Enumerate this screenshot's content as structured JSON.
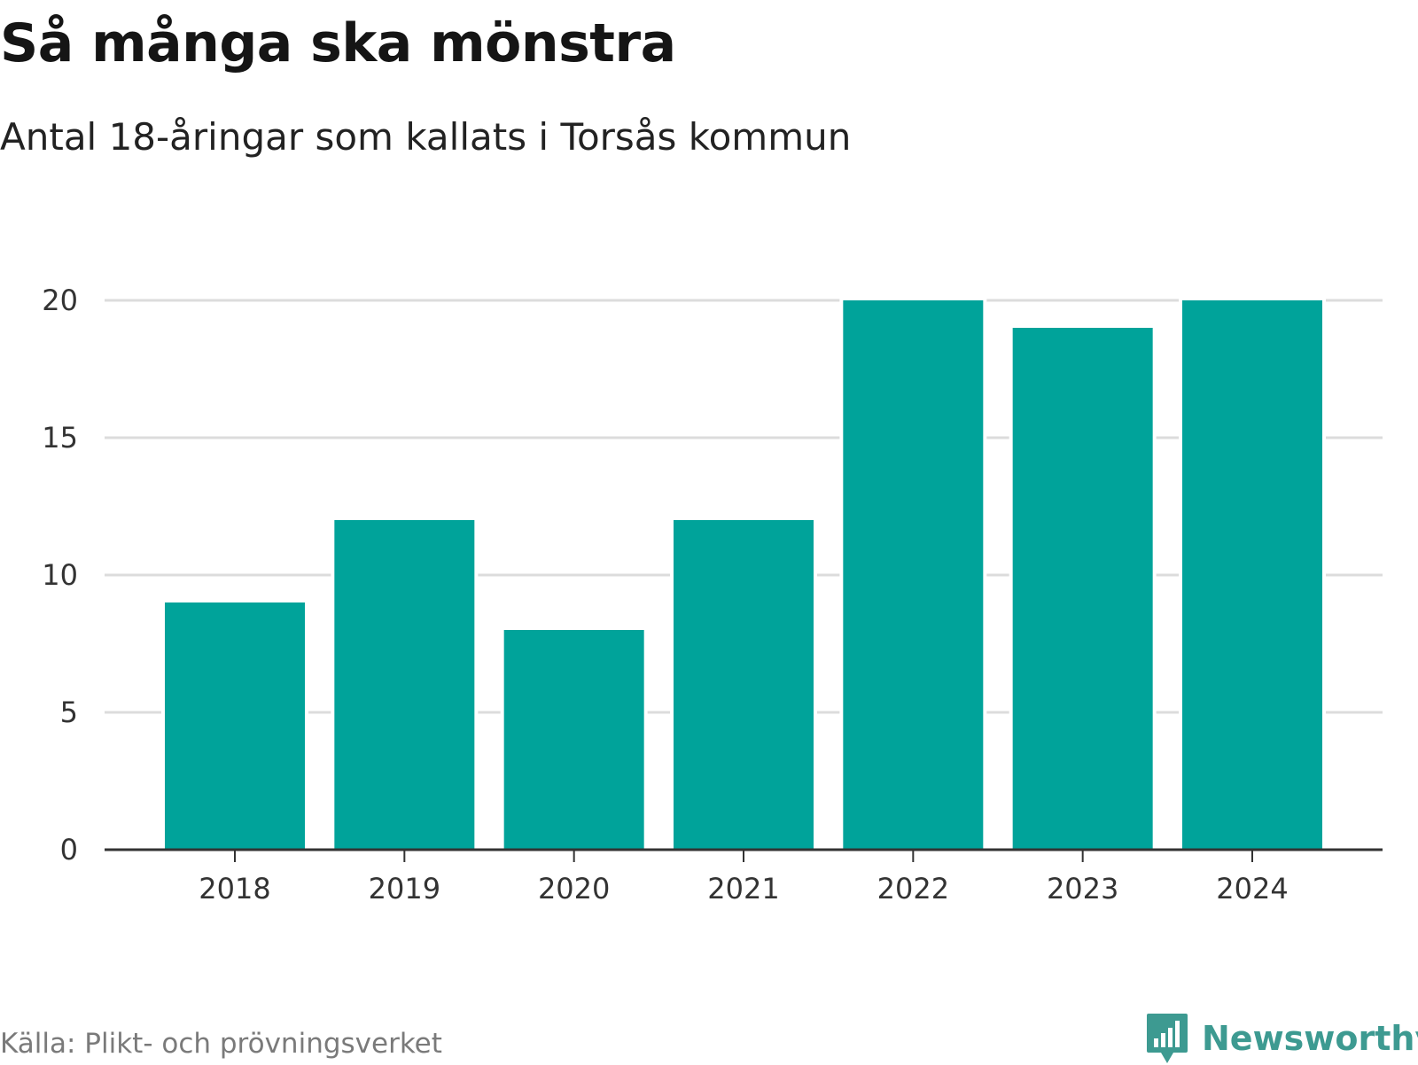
{
  "title": "Så många ska mönstra",
  "subtitle": "Antal 18-åringar som kallats i Torsås kommun",
  "source": "Källa: Plikt- och prövningsverket",
  "brand": {
    "name": "Newsworthy",
    "icon": "newsworthy-logo-icon",
    "color": "#3d9a91"
  },
  "colors": {
    "bar": "#00a39a",
    "grid": "#dcdcdc",
    "axis": "#333333",
    "tick_text": "#333333"
  },
  "chart_data": {
    "type": "bar",
    "title": "Så många ska mönstra",
    "subtitle": "Antal 18-åringar som kallats i Torsås kommun",
    "categories": [
      "2018",
      "2019",
      "2020",
      "2021",
      "2022",
      "2023",
      "2024"
    ],
    "values": [
      9,
      12,
      8,
      12,
      20,
      19,
      20
    ],
    "xlabel": "",
    "ylabel": "",
    "ylim": [
      0,
      20
    ],
    "yticks": [
      "0",
      "5",
      "10",
      "15",
      "20"
    ],
    "grid": true,
    "legend": "none"
  }
}
